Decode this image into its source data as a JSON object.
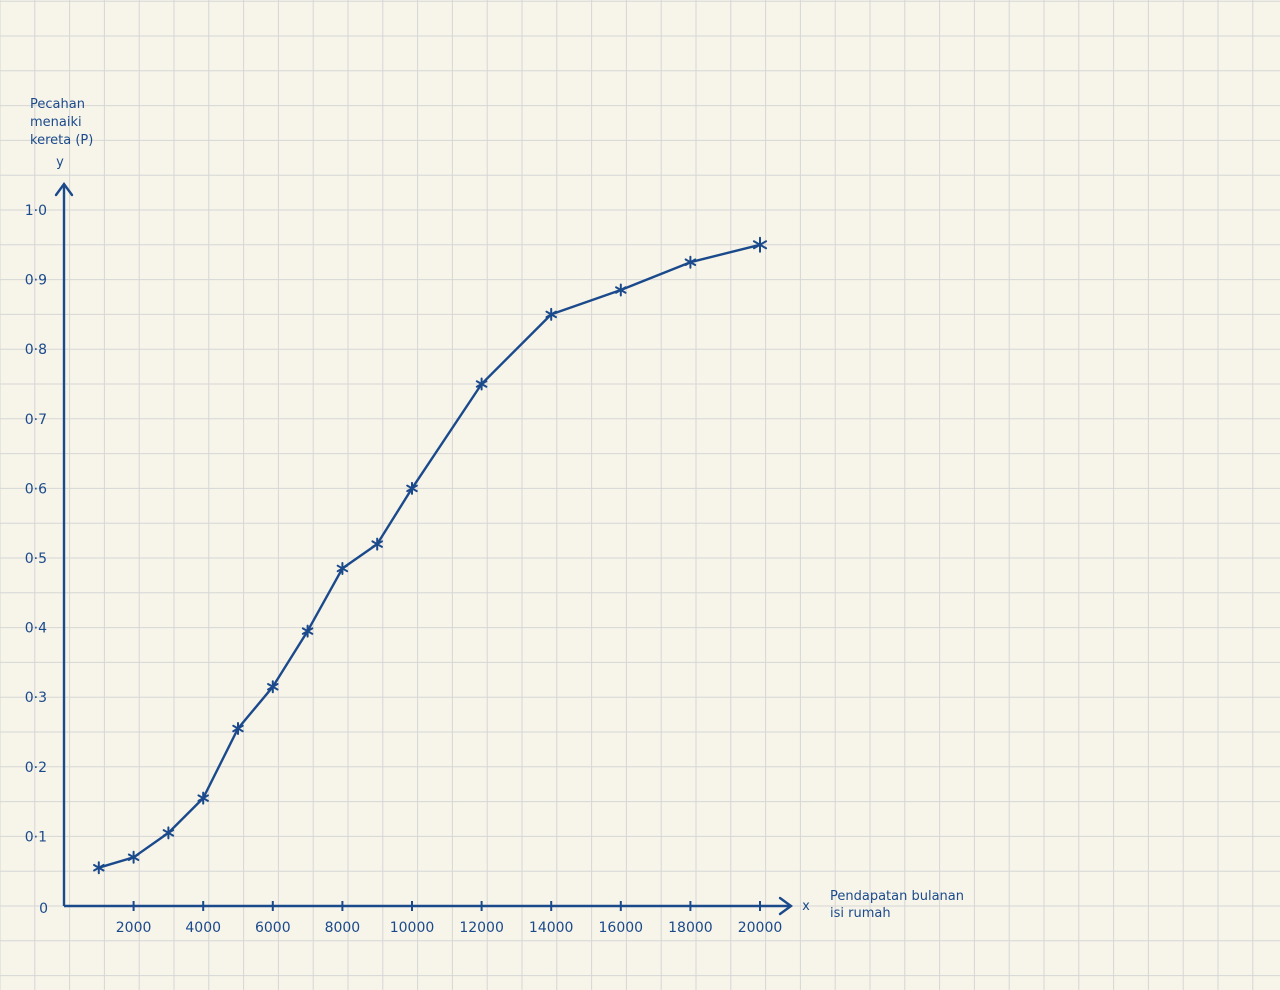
{
  "chart_data": {
    "type": "line",
    "ylabel_lines": [
      "Pecahan",
      "menaiki",
      "kereta (P)"
    ],
    "xlabel_lines": [
      "Pendapatan bulanan",
      "isi rumah"
    ],
    "x_axis_letter": "x",
    "y_axis_letter": "y",
    "origin_label": "0",
    "x_ticks": [
      2000,
      4000,
      6000,
      8000,
      10000,
      12000,
      14000,
      16000,
      18000,
      20000
    ],
    "x_tick_labels": [
      "2000",
      "4000",
      "6000",
      "8000",
      "10000",
      "12000",
      "14000",
      "16000",
      "18000",
      "20000"
    ],
    "y_ticks": [
      0.1,
      0.2,
      0.3,
      0.4,
      0.5,
      0.6,
      0.7,
      0.8,
      0.9,
      1.0
    ],
    "y_tick_labels": [
      "0·1",
      "0·2",
      "0·3",
      "0·4",
      "0·5",
      "0·6",
      "0·7",
      "0·8",
      "0·9",
      "1·0"
    ],
    "xlim": [
      0,
      20000
    ],
    "ylim": [
      0,
      1.0
    ],
    "grid": true,
    "marker": "asterisk",
    "series": [
      {
        "x": [
          1000,
          2000,
          3000,
          4000,
          5000,
          6000,
          7000,
          8000,
          9000,
          10000,
          12000,
          14000,
          16000,
          18000,
          20000
        ],
        "y": [
          0.055,
          0.07,
          0.105,
          0.155,
          0.255,
          0.315,
          0.395,
          0.485,
          0.52,
          0.6,
          0.75,
          0.85,
          0.885,
          0.925,
          0.95
        ]
      }
    ],
    "colors": {
      "ink": "#1b4a8c",
      "grid": "#d6d6d6",
      "paper": "#f7f4e9"
    }
  }
}
